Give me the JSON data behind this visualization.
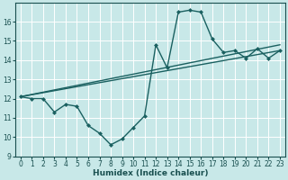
{
  "title": "",
  "xlabel": "Humidex (Indice chaleur)",
  "ylabel": "",
  "bg_color": "#c8e8e8",
  "line_color": "#1a6060",
  "grid_color": "#ffffff",
  "xlim": [
    -0.5,
    23.5
  ],
  "ylim": [
    9,
    17
  ],
  "yticks": [
    9,
    10,
    11,
    12,
    13,
    14,
    15,
    16
  ],
  "xticks": [
    0,
    1,
    2,
    3,
    4,
    5,
    6,
    7,
    8,
    9,
    10,
    11,
    12,
    13,
    14,
    15,
    16,
    17,
    18,
    19,
    20,
    21,
    22,
    23
  ],
  "series1_x": [
    0,
    1,
    2,
    3,
    4,
    5,
    6,
    7,
    8,
    9,
    10,
    11,
    12,
    13,
    14,
    15,
    16,
    17,
    18,
    19,
    20,
    21,
    22,
    23
  ],
  "series1_y": [
    12.1,
    12.0,
    12.0,
    11.3,
    11.7,
    11.6,
    10.6,
    10.2,
    9.6,
    9.9,
    10.5,
    11.1,
    14.8,
    13.6,
    16.5,
    16.6,
    16.5,
    15.1,
    14.4,
    14.5,
    14.1,
    14.6,
    14.1,
    14.5
  ],
  "trend1_x": [
    0,
    23
  ],
  "trend1_y": [
    12.1,
    14.8
  ],
  "trend2_x": [
    0,
    23
  ],
  "trend2_y": [
    12.1,
    14.5
  ],
  "line_width": 1.0,
  "marker_size": 2.5,
  "tick_color": "#1a5050",
  "tick_fontsize": 5.5,
  "xlabel_fontsize": 6.5
}
